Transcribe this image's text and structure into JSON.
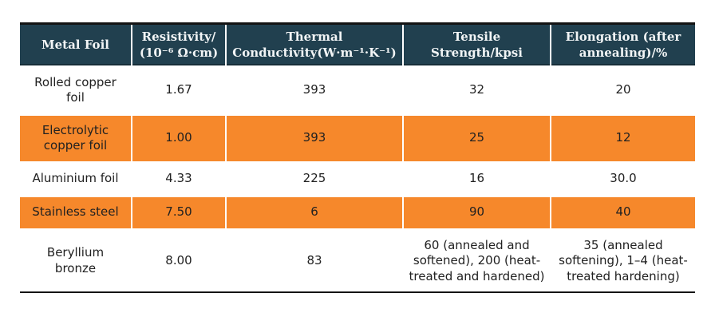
{
  "colors": {
    "header_bg": "#21404f",
    "header_text": "#f2f5f6",
    "highlight_row_bg": "#f6882b",
    "row_bg": "#ffffff",
    "body_text": "#212121",
    "rule": "#141414"
  },
  "table": {
    "columns": [
      {
        "id": "metal-foil",
        "lines": [
          "Metal Foil"
        ]
      },
      {
        "id": "resistivity",
        "lines": [
          "Resistivity/",
          "(10⁻⁶ Ω·cm)"
        ]
      },
      {
        "id": "thermal-conductivity",
        "lines": [
          "Thermal",
          "Conductivity(W·m⁻¹·K⁻¹)"
        ]
      },
      {
        "id": "tensile-strength",
        "lines": [
          "Tensile",
          "Strength/kpsi"
        ]
      },
      {
        "id": "elongation",
        "lines": [
          "Elongation (after",
          "annealing)/%"
        ]
      }
    ],
    "rows": [
      {
        "highlight": false,
        "cells": [
          "Rolled copper foil",
          "1.67",
          "393",
          "32",
          "20"
        ]
      },
      {
        "highlight": true,
        "cells": [
          "Electrolytic copper foil",
          "1.00",
          "393",
          "25",
          "12"
        ]
      },
      {
        "highlight": false,
        "cells": [
          "Aluminium foil",
          "4.33",
          "225",
          "16",
          "30.0"
        ]
      },
      {
        "highlight": true,
        "cells": [
          "Stainless steel",
          "7.50",
          "6",
          "90",
          "40"
        ]
      },
      {
        "highlight": false,
        "cells": [
          "Beryllium bronze",
          "8.00",
          "83",
          "60 (annealed and softened), 200 (heat-treated and hardened)",
          "35 (annealed softening), 1–4 (heat-treated hardening)"
        ]
      }
    ]
  }
}
